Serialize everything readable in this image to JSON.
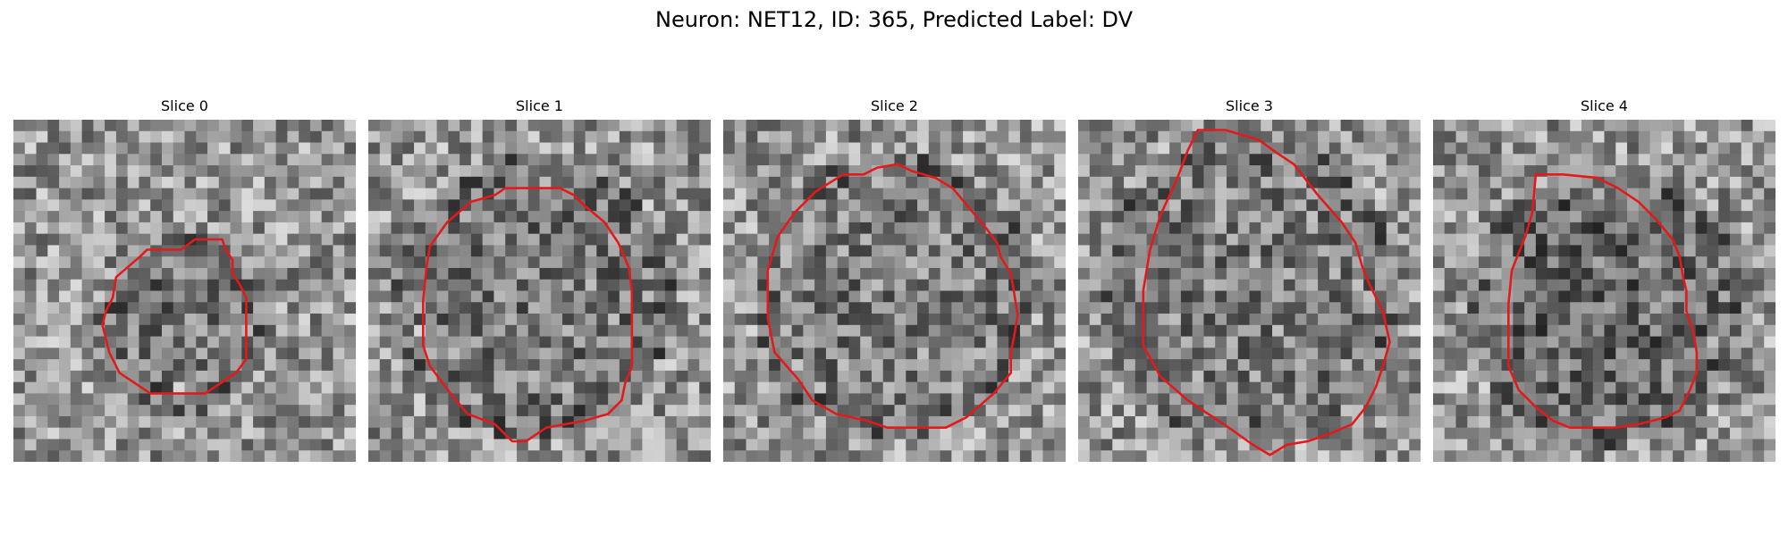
{
  "figure": {
    "title": "Neuron: NET12, ID: 365, Predicted Label: DV"
  },
  "outline_color": "#e31a1c",
  "slices": [
    {
      "title": "Slice 0",
      "seed": 11,
      "dark_center": [
        0.5,
        0.6
      ],
      "dark_radius": 0.18,
      "dark_strength": 35,
      "contour": [
        [
          0.39,
          0.38
        ],
        [
          0.49,
          0.38
        ],
        [
          0.53,
          0.35
        ],
        [
          0.61,
          0.35
        ],
        [
          0.62,
          0.38
        ],
        [
          0.64,
          0.41
        ],
        [
          0.64,
          0.45
        ],
        [
          0.66,
          0.48
        ],
        [
          0.68,
          0.52
        ],
        [
          0.68,
          0.58
        ],
        [
          0.68,
          0.64
        ],
        [
          0.68,
          0.7
        ],
        [
          0.65,
          0.74
        ],
        [
          0.56,
          0.8
        ],
        [
          0.4,
          0.8
        ],
        [
          0.31,
          0.74
        ],
        [
          0.28,
          0.68
        ],
        [
          0.26,
          0.6
        ],
        [
          0.27,
          0.56
        ],
        [
          0.29,
          0.52
        ],
        [
          0.3,
          0.46
        ],
        [
          0.37,
          0.4
        ]
      ]
    },
    {
      "title": "Slice 1",
      "seed": 23,
      "dark_center": [
        0.48,
        0.52
      ],
      "dark_radius": 0.34,
      "dark_strength": 28,
      "contour": [
        [
          0.3,
          0.24
        ],
        [
          0.37,
          0.22
        ],
        [
          0.4,
          0.2
        ],
        [
          0.56,
          0.2
        ],
        [
          0.6,
          0.22
        ],
        [
          0.63,
          0.25
        ],
        [
          0.69,
          0.3
        ],
        [
          0.73,
          0.36
        ],
        [
          0.76,
          0.43
        ],
        [
          0.77,
          0.5
        ],
        [
          0.77,
          0.6
        ],
        [
          0.77,
          0.72
        ],
        [
          0.75,
          0.77
        ],
        [
          0.74,
          0.82
        ],
        [
          0.7,
          0.86
        ],
        [
          0.63,
          0.88
        ],
        [
          0.52,
          0.9
        ],
        [
          0.46,
          0.94
        ],
        [
          0.42,
          0.94
        ],
        [
          0.37,
          0.89
        ],
        [
          0.29,
          0.86
        ],
        [
          0.24,
          0.8
        ],
        [
          0.18,
          0.72
        ],
        [
          0.16,
          0.66
        ],
        [
          0.16,
          0.53
        ],
        [
          0.17,
          0.43
        ],
        [
          0.18,
          0.37
        ],
        [
          0.23,
          0.3
        ]
      ]
    },
    {
      "title": "Slice 2",
      "seed": 37,
      "dark_center": [
        0.5,
        0.52
      ],
      "dark_radius": 0.34,
      "dark_strength": 25,
      "contour": [
        [
          0.35,
          0.16
        ],
        [
          0.41,
          0.16
        ],
        [
          0.45,
          0.14
        ],
        [
          0.51,
          0.13
        ],
        [
          0.55,
          0.15
        ],
        [
          0.62,
          0.17
        ],
        [
          0.67,
          0.2
        ],
        [
          0.72,
          0.26
        ],
        [
          0.77,
          0.32
        ],
        [
          0.8,
          0.36
        ],
        [
          0.81,
          0.4
        ],
        [
          0.84,
          0.45
        ],
        [
          0.85,
          0.51
        ],
        [
          0.86,
          0.57
        ],
        [
          0.85,
          0.63
        ],
        [
          0.84,
          0.68
        ],
        [
          0.84,
          0.74
        ],
        [
          0.79,
          0.8
        ],
        [
          0.71,
          0.87
        ],
        [
          0.65,
          0.9
        ],
        [
          0.48,
          0.9
        ],
        [
          0.42,
          0.88
        ],
        [
          0.33,
          0.86
        ],
        [
          0.26,
          0.82
        ],
        [
          0.22,
          0.76
        ],
        [
          0.15,
          0.68
        ],
        [
          0.13,
          0.58
        ],
        [
          0.13,
          0.44
        ],
        [
          0.16,
          0.34
        ],
        [
          0.21,
          0.27
        ],
        [
          0.27,
          0.21
        ]
      ]
    },
    {
      "title": "Slice 3",
      "seed": 53,
      "dark_center": [
        0.5,
        0.5
      ],
      "dark_radius": 0.37,
      "dark_strength": 25,
      "contour": [
        [
          0.35,
          0.03
        ],
        [
          0.43,
          0.03
        ],
        [
          0.53,
          0.06
        ],
        [
          0.57,
          0.09
        ],
        [
          0.63,
          0.13
        ],
        [
          0.7,
          0.22
        ],
        [
          0.77,
          0.3
        ],
        [
          0.81,
          0.36
        ],
        [
          0.83,
          0.43
        ],
        [
          0.85,
          0.48
        ],
        [
          0.89,
          0.56
        ],
        [
          0.91,
          0.65
        ],
        [
          0.89,
          0.72
        ],
        [
          0.87,
          0.78
        ],
        [
          0.84,
          0.84
        ],
        [
          0.8,
          0.89
        ],
        [
          0.73,
          0.92
        ],
        [
          0.67,
          0.94
        ],
        [
          0.61,
          0.95
        ],
        [
          0.56,
          0.98
        ],
        [
          0.51,
          0.95
        ],
        [
          0.44,
          0.9
        ],
        [
          0.32,
          0.82
        ],
        [
          0.24,
          0.75
        ],
        [
          0.19,
          0.66
        ],
        [
          0.19,
          0.5
        ],
        [
          0.21,
          0.38
        ],
        [
          0.24,
          0.28
        ],
        [
          0.29,
          0.17
        ],
        [
          0.32,
          0.09
        ]
      ]
    },
    {
      "title": "Slice 4",
      "seed": 71,
      "dark_center": [
        0.5,
        0.55
      ],
      "dark_radius": 0.33,
      "dark_strength": 45,
      "contour": [
        [
          0.3,
          0.16
        ],
        [
          0.38,
          0.16
        ],
        [
          0.48,
          0.17
        ],
        [
          0.54,
          0.2
        ],
        [
          0.6,
          0.24
        ],
        [
          0.65,
          0.29
        ],
        [
          0.7,
          0.35
        ],
        [
          0.72,
          0.4
        ],
        [
          0.73,
          0.46
        ],
        [
          0.74,
          0.5
        ],
        [
          0.74,
          0.56
        ],
        [
          0.76,
          0.62
        ],
        [
          0.77,
          0.68
        ],
        [
          0.77,
          0.74
        ],
        [
          0.75,
          0.79
        ],
        [
          0.72,
          0.85
        ],
        [
          0.68,
          0.87
        ],
        [
          0.6,
          0.89
        ],
        [
          0.53,
          0.9
        ],
        [
          0.4,
          0.9
        ],
        [
          0.35,
          0.88
        ],
        [
          0.3,
          0.84
        ],
        [
          0.25,
          0.79
        ],
        [
          0.22,
          0.72
        ],
        [
          0.22,
          0.65
        ],
        [
          0.22,
          0.54
        ],
        [
          0.23,
          0.44
        ],
        [
          0.27,
          0.34
        ],
        [
          0.29,
          0.27
        ]
      ]
    }
  ]
}
